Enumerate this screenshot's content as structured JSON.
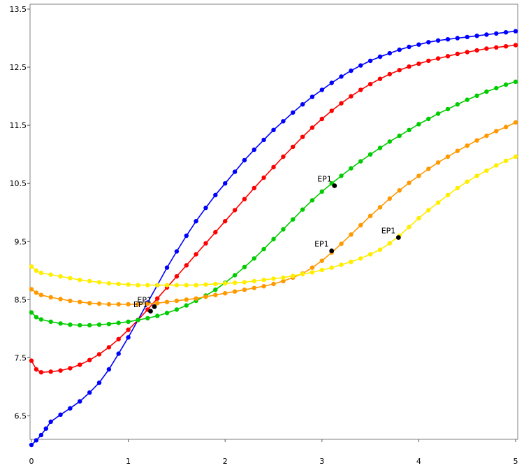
{
  "chart_data": {
    "type": "line",
    "title": "",
    "xlabel": "",
    "ylabel": "",
    "xlim": [
      0,
      5
    ],
    "ylim": [
      6,
      13.5
    ],
    "x_ticks": [
      {
        "value": 0,
        "label": "0"
      },
      {
        "value": 1,
        "label": "1"
      },
      {
        "value": 2,
        "label": "2"
      },
      {
        "value": 3,
        "label": "3"
      },
      {
        "value": 4,
        "label": "4"
      },
      {
        "value": 5,
        "label": "5"
      }
    ],
    "y_ticks": [
      {
        "value": 6.5,
        "label": "6.5"
      },
      {
        "value": 7.5,
        "label": "7.5"
      },
      {
        "value": 8.5,
        "label": "8.5"
      },
      {
        "value": 9.5,
        "label": "9.5"
      },
      {
        "value": 10.5,
        "label": "10.5"
      },
      {
        "value": 11.5,
        "label": "11.5"
      },
      {
        "value": 12.5,
        "label": "12.5"
      },
      {
        "value": 13.5,
        "label": "13.5"
      }
    ],
    "grid": false,
    "legend": "none",
    "series": [
      {
        "color": "#0000ff",
        "points": [
          [
            0.0,
            6.0
          ],
          [
            0.05,
            6.08
          ],
          [
            0.1,
            6.17
          ],
          [
            0.15,
            6.28
          ],
          [
            0.2,
            6.4
          ],
          [
            0.3,
            6.52
          ],
          [
            0.4,
            6.63
          ],
          [
            0.5,
            6.75
          ],
          [
            0.6,
            6.9
          ],
          [
            0.7,
            7.07
          ],
          [
            0.8,
            7.3
          ],
          [
            0.9,
            7.57
          ],
          [
            1.0,
            7.85
          ],
          [
            1.1,
            8.15
          ],
          [
            1.2,
            8.45
          ],
          [
            1.3,
            8.75
          ],
          [
            1.4,
            9.05
          ],
          [
            1.5,
            9.33
          ],
          [
            1.6,
            9.6
          ],
          [
            1.7,
            9.85
          ],
          [
            1.8,
            10.08
          ],
          [
            1.9,
            10.3
          ],
          [
            2.0,
            10.5
          ],
          [
            2.1,
            10.7
          ],
          [
            2.2,
            10.9
          ],
          [
            2.3,
            11.08
          ],
          [
            2.4,
            11.25
          ],
          [
            2.5,
            11.42
          ],
          [
            2.6,
            11.57
          ],
          [
            2.7,
            11.72
          ],
          [
            2.8,
            11.86
          ],
          [
            2.9,
            11.99
          ],
          [
            3.0,
            12.11
          ],
          [
            3.1,
            12.23
          ],
          [
            3.2,
            12.34
          ],
          [
            3.3,
            12.44
          ],
          [
            3.4,
            12.53
          ],
          [
            3.5,
            12.61
          ],
          [
            3.6,
            12.68
          ],
          [
            3.7,
            12.74
          ],
          [
            3.8,
            12.8
          ],
          [
            3.9,
            12.85
          ],
          [
            4.0,
            12.89
          ],
          [
            4.1,
            12.93
          ],
          [
            4.2,
            12.96
          ],
          [
            4.3,
            12.98
          ],
          [
            4.4,
            13.0
          ],
          [
            4.5,
            13.02
          ],
          [
            4.6,
            13.04
          ],
          [
            4.7,
            13.06
          ],
          [
            4.8,
            13.08
          ],
          [
            4.9,
            13.1
          ],
          [
            5.0,
            13.12
          ]
        ]
      },
      {
        "color": "#ff0000",
        "points": [
          [
            0.0,
            7.45
          ],
          [
            0.05,
            7.3
          ],
          [
            0.1,
            7.25
          ],
          [
            0.2,
            7.26
          ],
          [
            0.3,
            7.28
          ],
          [
            0.4,
            7.32
          ],
          [
            0.5,
            7.38
          ],
          [
            0.6,
            7.46
          ],
          [
            0.7,
            7.56
          ],
          [
            0.8,
            7.68
          ],
          [
            0.9,
            7.82
          ],
          [
            1.0,
            7.98
          ],
          [
            1.1,
            8.15
          ],
          [
            1.2,
            8.33
          ],
          [
            1.3,
            8.52
          ],
          [
            1.4,
            8.71
          ],
          [
            1.5,
            8.9
          ],
          [
            1.6,
            9.09
          ],
          [
            1.7,
            9.28
          ],
          [
            1.8,
            9.47
          ],
          [
            1.9,
            9.66
          ],
          [
            2.0,
            9.85
          ],
          [
            2.1,
            10.04
          ],
          [
            2.2,
            10.23
          ],
          [
            2.3,
            10.42
          ],
          [
            2.4,
            10.6
          ],
          [
            2.5,
            10.78
          ],
          [
            2.6,
            10.96
          ],
          [
            2.7,
            11.13
          ],
          [
            2.8,
            11.3
          ],
          [
            2.9,
            11.46
          ],
          [
            3.0,
            11.61
          ],
          [
            3.1,
            11.75
          ],
          [
            3.2,
            11.88
          ],
          [
            3.3,
            12.0
          ],
          [
            3.4,
            12.11
          ],
          [
            3.5,
            12.21
          ],
          [
            3.6,
            12.3
          ],
          [
            3.7,
            12.38
          ],
          [
            3.8,
            12.45
          ],
          [
            3.9,
            12.51
          ],
          [
            4.0,
            12.56
          ],
          [
            4.1,
            12.61
          ],
          [
            4.2,
            12.65
          ],
          [
            4.3,
            12.69
          ],
          [
            4.4,
            12.73
          ],
          [
            4.5,
            12.76
          ],
          [
            4.6,
            12.79
          ],
          [
            4.7,
            12.82
          ],
          [
            4.8,
            12.84
          ],
          [
            4.9,
            12.86
          ],
          [
            5.0,
            12.88
          ]
        ]
      },
      {
        "color": "#00cc00",
        "points": [
          [
            0.0,
            8.28
          ],
          [
            0.05,
            8.2
          ],
          [
            0.1,
            8.16
          ],
          [
            0.2,
            8.12
          ],
          [
            0.3,
            8.09
          ],
          [
            0.4,
            8.07
          ],
          [
            0.5,
            8.06
          ],
          [
            0.6,
            8.06
          ],
          [
            0.7,
            8.07
          ],
          [
            0.8,
            8.08
          ],
          [
            0.9,
            8.1
          ],
          [
            1.0,
            8.12
          ],
          [
            1.1,
            8.15
          ],
          [
            1.2,
            8.18
          ],
          [
            1.3,
            8.22
          ],
          [
            1.4,
            8.27
          ],
          [
            1.5,
            8.33
          ],
          [
            1.6,
            8.4
          ],
          [
            1.7,
            8.48
          ],
          [
            1.8,
            8.57
          ],
          [
            1.9,
            8.67
          ],
          [
            2.0,
            8.79
          ],
          [
            2.1,
            8.92
          ],
          [
            2.2,
            9.06
          ],
          [
            2.3,
            9.21
          ],
          [
            2.4,
            9.37
          ],
          [
            2.5,
            9.54
          ],
          [
            2.6,
            9.71
          ],
          [
            2.7,
            9.88
          ],
          [
            2.8,
            10.05
          ],
          [
            2.9,
            10.21
          ],
          [
            3.0,
            10.36
          ],
          [
            3.1,
            10.5
          ],
          [
            3.2,
            10.63
          ],
          [
            3.3,
            10.76
          ],
          [
            3.4,
            10.88
          ],
          [
            3.5,
            11.0
          ],
          [
            3.6,
            11.11
          ],
          [
            3.7,
            11.22
          ],
          [
            3.8,
            11.32
          ],
          [
            3.9,
            11.42
          ],
          [
            4.0,
            11.52
          ],
          [
            4.1,
            11.61
          ],
          [
            4.2,
            11.7
          ],
          [
            4.3,
            11.78
          ],
          [
            4.4,
            11.86
          ],
          [
            4.5,
            11.94
          ],
          [
            4.6,
            12.01
          ],
          [
            4.7,
            12.08
          ],
          [
            4.8,
            12.14
          ],
          [
            4.9,
            12.2
          ],
          [
            5.0,
            12.25
          ]
        ]
      },
      {
        "color": "#ff9900",
        "points": [
          [
            0.0,
            8.68
          ],
          [
            0.05,
            8.62
          ],
          [
            0.1,
            8.58
          ],
          [
            0.2,
            8.54
          ],
          [
            0.3,
            8.51
          ],
          [
            0.4,
            8.48
          ],
          [
            0.5,
            8.46
          ],
          [
            0.6,
            8.44
          ],
          [
            0.7,
            8.43
          ],
          [
            0.8,
            8.42
          ],
          [
            0.9,
            8.42
          ],
          [
            1.0,
            8.42
          ],
          [
            1.1,
            8.42
          ],
          [
            1.2,
            8.43
          ],
          [
            1.3,
            8.44
          ],
          [
            1.4,
            8.46
          ],
          [
            1.5,
            8.48
          ],
          [
            1.6,
            8.5
          ],
          [
            1.7,
            8.52
          ],
          [
            1.8,
            8.55
          ],
          [
            1.9,
            8.58
          ],
          [
            2.0,
            8.61
          ],
          [
            2.1,
            8.64
          ],
          [
            2.2,
            8.67
          ],
          [
            2.3,
            8.7
          ],
          [
            2.4,
            8.73
          ],
          [
            2.5,
            8.77
          ],
          [
            2.6,
            8.82
          ],
          [
            2.7,
            8.88
          ],
          [
            2.8,
            8.95
          ],
          [
            2.9,
            9.05
          ],
          [
            3.0,
            9.17
          ],
          [
            3.1,
            9.31
          ],
          [
            3.2,
            9.46
          ],
          [
            3.3,
            9.62
          ],
          [
            3.4,
            9.78
          ],
          [
            3.5,
            9.94
          ],
          [
            3.6,
            10.09
          ],
          [
            3.7,
            10.24
          ],
          [
            3.8,
            10.38
          ],
          [
            3.9,
            10.51
          ],
          [
            4.0,
            10.63
          ],
          [
            4.1,
            10.75
          ],
          [
            4.2,
            10.86
          ],
          [
            4.3,
            10.96
          ],
          [
            4.4,
            11.06
          ],
          [
            4.5,
            11.15
          ],
          [
            4.6,
            11.24
          ],
          [
            4.7,
            11.32
          ],
          [
            4.8,
            11.4
          ],
          [
            4.9,
            11.47
          ],
          [
            5.0,
            11.55
          ]
        ]
      },
      {
        "color": "#ffee00",
        "points": [
          [
            0.0,
            9.07
          ],
          [
            0.05,
            9.0
          ],
          [
            0.1,
            8.96
          ],
          [
            0.2,
            8.93
          ],
          [
            0.3,
            8.9
          ],
          [
            0.4,
            8.87
          ],
          [
            0.5,
            8.84
          ],
          [
            0.6,
            8.82
          ],
          [
            0.7,
            8.8
          ],
          [
            0.8,
            8.78
          ],
          [
            0.9,
            8.77
          ],
          [
            1.0,
            8.76
          ],
          [
            1.1,
            8.75
          ],
          [
            1.2,
            8.75
          ],
          [
            1.3,
            8.75
          ],
          [
            1.4,
            8.75
          ],
          [
            1.5,
            8.75
          ],
          [
            1.6,
            8.75
          ],
          [
            1.7,
            8.75
          ],
          [
            1.8,
            8.76
          ],
          [
            1.9,
            8.77
          ],
          [
            2.0,
            8.78
          ],
          [
            2.1,
            8.79
          ],
          [
            2.2,
            8.8
          ],
          [
            2.3,
            8.82
          ],
          [
            2.4,
            8.84
          ],
          [
            2.5,
            8.86
          ],
          [
            2.6,
            8.88
          ],
          [
            2.7,
            8.91
          ],
          [
            2.8,
            8.94
          ],
          [
            2.9,
            8.97
          ],
          [
            3.0,
            9.01
          ],
          [
            3.1,
            9.05
          ],
          [
            3.2,
            9.1
          ],
          [
            3.3,
            9.15
          ],
          [
            3.4,
            9.21
          ],
          [
            3.5,
            9.28
          ],
          [
            3.6,
            9.36
          ],
          [
            3.7,
            9.47
          ],
          [
            3.8,
            9.6
          ],
          [
            3.9,
            9.75
          ],
          [
            4.0,
            9.9
          ],
          [
            4.1,
            10.04
          ],
          [
            4.2,
            10.17
          ],
          [
            4.3,
            10.3
          ],
          [
            4.4,
            10.42
          ],
          [
            4.5,
            10.53
          ],
          [
            4.6,
            10.63
          ],
          [
            4.7,
            10.72
          ],
          [
            4.8,
            10.81
          ],
          [
            4.9,
            10.89
          ],
          [
            5.0,
            10.96
          ]
        ]
      }
    ],
    "annotations": [
      {
        "text": "EP1",
        "x": 1.27,
        "y": 8.38,
        "marker_color": "#000000"
      },
      {
        "text": "EP1",
        "x": 1.23,
        "y": 8.3,
        "marker_color": "#000000"
      },
      {
        "text": "EP1",
        "x": 3.13,
        "y": 10.46,
        "marker_color": "#000000"
      },
      {
        "text": "EP1",
        "x": 3.1,
        "y": 9.34,
        "marker_color": "#000000"
      },
      {
        "text": "EP1",
        "x": 3.79,
        "y": 9.57,
        "marker_color": "#000000"
      }
    ]
  }
}
